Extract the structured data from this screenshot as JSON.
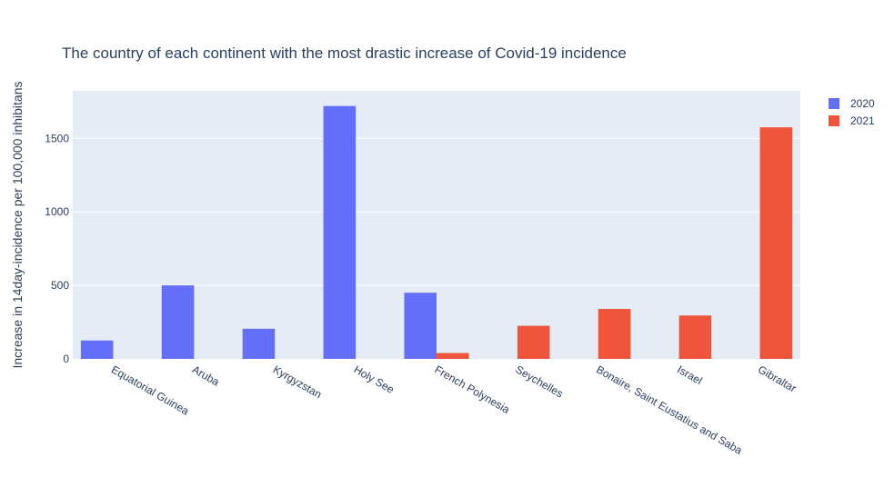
{
  "chart_data": {
    "type": "bar",
    "title": "The country of each continent with the most drastic increase of Covid-19 incidence",
    "xlabel": "",
    "ylabel": "Increase in 14day-incidence per 100,000 inhibitans",
    "categories": [
      "Equatorial Guinea",
      "Aruba",
      "Kyrgyzstan",
      "Holy See",
      "French Polynesia",
      "Seychelles",
      "Bonaire, Saint Eustatius and Saba",
      "Israel",
      "Gibraltar"
    ],
    "series": [
      {
        "name": "2020",
        "color": "#636efa",
        "values": [
          125,
          500,
          205,
          1720,
          450,
          null,
          null,
          null,
          null
        ]
      },
      {
        "name": "2021",
        "color": "#ef553b",
        "values": [
          null,
          null,
          null,
          null,
          40,
          225,
          340,
          295,
          1575
        ]
      }
    ],
    "ylim": [
      0,
      1823
    ],
    "yticks": [
      0,
      500,
      1000,
      1500
    ],
    "grid": true,
    "legend": "top-right"
  }
}
